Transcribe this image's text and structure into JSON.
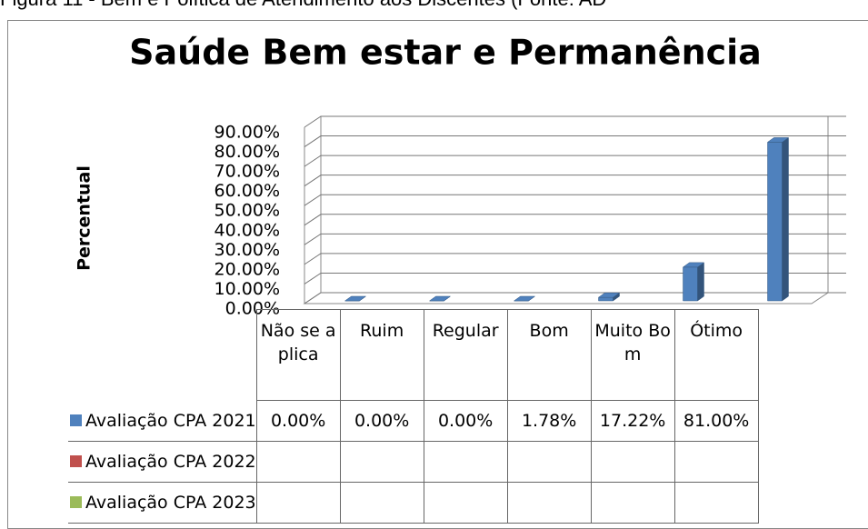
{
  "caption": "Figura 11 - Bem e Política de Atendimento aos Discentes (Fonte: AD",
  "chart_data": {
    "type": "bar3d",
    "title": "Saúde Bem estar e Permanência",
    "ylabel": "Percentual",
    "categories": [
      "Não se aplica",
      "Ruim",
      "Regular",
      "Bom",
      "Muito Bom",
      "Ótimo"
    ],
    "ylim": [
      0,
      90
    ],
    "yticks": [
      {
        "value": 0,
        "label": "0.00%"
      },
      {
        "value": 10,
        "label": "10.00%"
      },
      {
        "value": 20,
        "label": "20.00%"
      },
      {
        "value": 30,
        "label": "30.00%"
      },
      {
        "value": 40,
        "label": "40.00%"
      },
      {
        "value": 50,
        "label": "50.00%"
      },
      {
        "value": 60,
        "label": "60.00%"
      },
      {
        "value": 70,
        "label": "70.00%"
      },
      {
        "value": 80,
        "label": "80.00%"
      },
      {
        "value": 90,
        "label": "90.00%"
      }
    ],
    "grid": true,
    "series": [
      {
        "name": "Avaliação CPA 2021",
        "color": "#4f81bd",
        "values": [
          0,
          0,
          0,
          1.78,
          17.22,
          81
        ],
        "value_labels": [
          "0.00%",
          "0.00%",
          "0.00%",
          "1.78%",
          "17.22%",
          "81.00%"
        ]
      },
      {
        "name": "Avaliação CPA 2022",
        "color": "#c0504d",
        "values": [
          null,
          null,
          null,
          null,
          null,
          null
        ]
      },
      {
        "name": "Avaliação CPA 2023",
        "color": "#9bbb59",
        "values": [
          null,
          null,
          null,
          null,
          null,
          null
        ]
      }
    ]
  }
}
